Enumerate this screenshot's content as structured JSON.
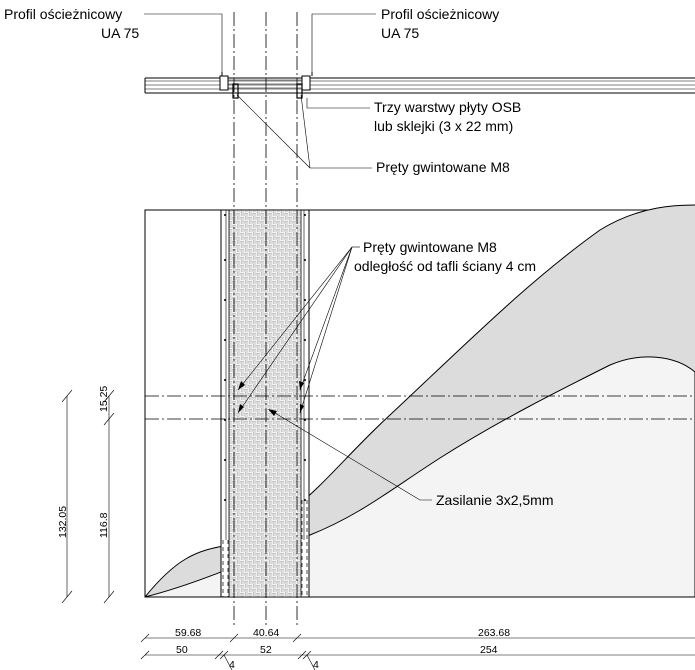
{
  "labels": {
    "profile_left_line1": "Profil ościeżnicowy",
    "profile_left_line2": "UA 75",
    "profile_right_line1": "Profil ościeżnicowy",
    "profile_right_line2": "UA 75",
    "osb_line1": "Trzy warstwy płyty OSB",
    "osb_line2": "lub sklejki (3 x 22 mm)",
    "rods_top": "Pręty gwintowane M8",
    "rods_mid_line1": "Pręty gwintowane M8",
    "rods_mid_line2": "odległość od tafli ściany 4 cm",
    "power": "Zasilanie 3x2,5mm"
  },
  "dimensions": {
    "vertical_total": "132.05",
    "vertical_lower": "116.8",
    "vertical_upper": "15.25",
    "row1": [
      "59.68",
      "40.64",
      "263.68"
    ],
    "row2": [
      "50",
      "52",
      "254"
    ],
    "small_left": "4",
    "small_right": "4"
  },
  "colors": {
    "line": "#000000",
    "glass_fill": "#dcdcdc",
    "lower_fill": "#f4f4f4",
    "panel_fill": "#ececec"
  }
}
